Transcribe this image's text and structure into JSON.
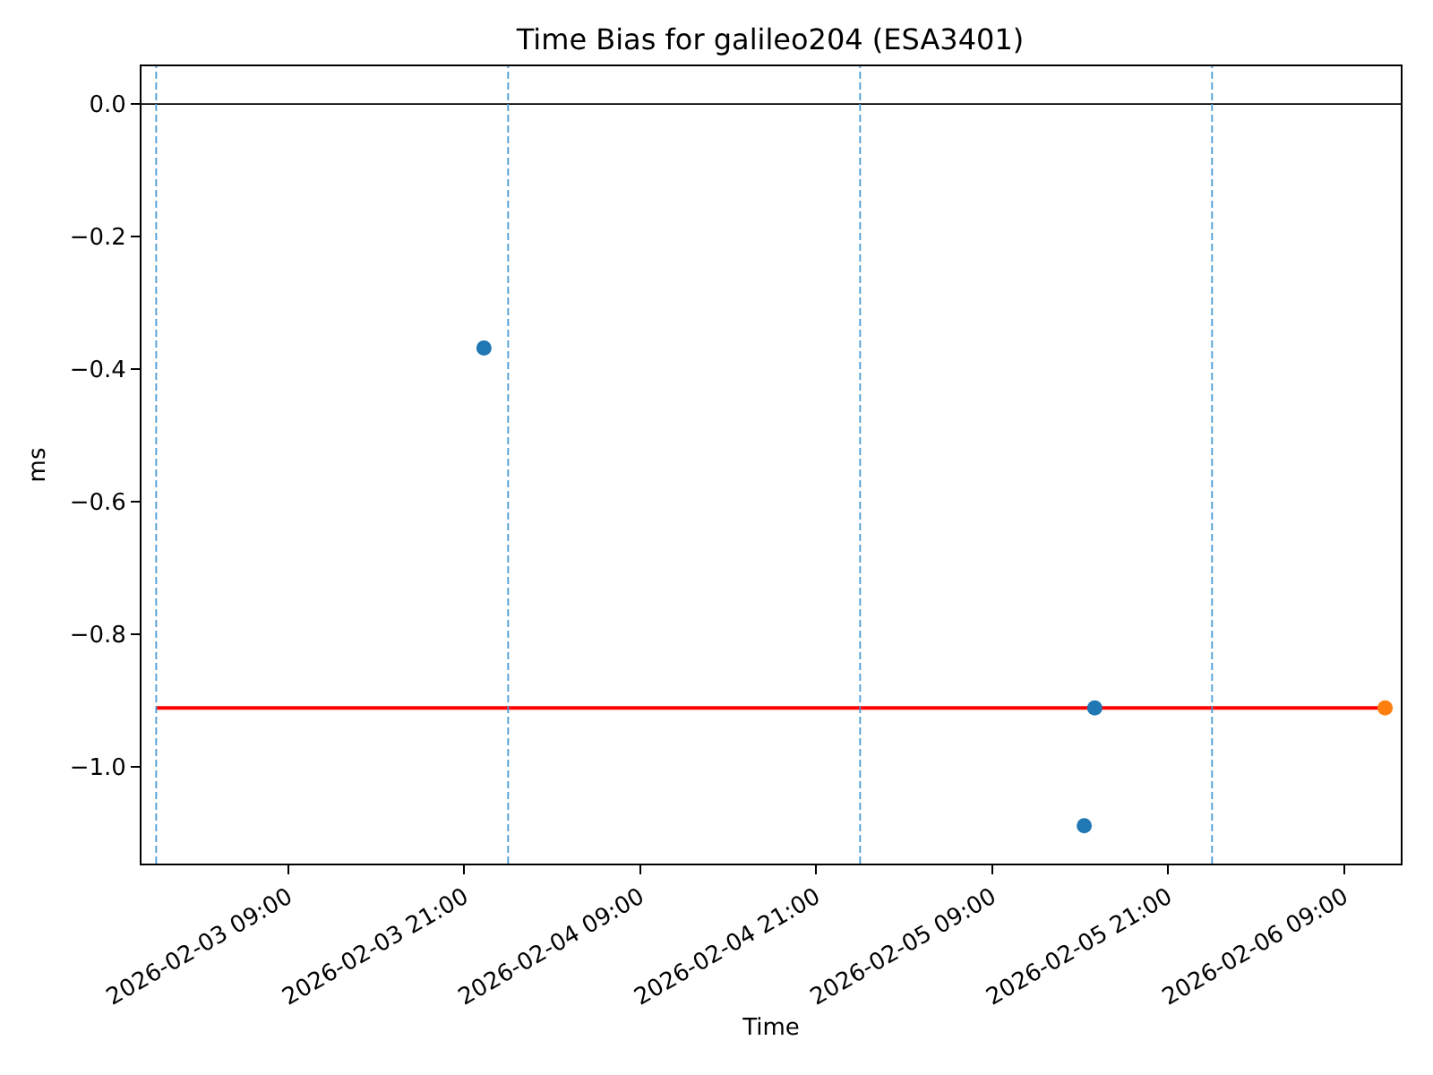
{
  "chart_data": {
    "type": "scatter",
    "title": "Time Bias for galileo204 (ESA3401)",
    "xlabel": "Time",
    "ylabel": "ms",
    "series": [
      {
        "type": "line",
        "marker": "none",
        "color": "#ff0000",
        "x": [
          "2026-02-03T00:00",
          "2026-02-06T11:48"
        ],
        "values": [
          -0.911,
          -0.911
        ]
      },
      {
        "color": "#1f77b4",
        "x": [
          "2026-02-03T22:21",
          "2026-02-05T15:17",
          "2026-02-05T16:00"
        ],
        "values": [
          -0.368,
          -1.089,
          -0.911
        ]
      },
      {
        "color": "#ff7f0e",
        "x": [
          "2026-02-06T11:48"
        ],
        "values": [
          -0.911
        ]
      }
    ],
    "xlim": [
      "2026-02-02T23:00",
      "2026-02-06T12:52"
    ],
    "xticks": [
      {
        "value": "2026-02-03T09:00",
        "label": "2026-02-03 09:00"
      },
      {
        "value": "2026-02-03T21:00",
        "label": "2026-02-03 21:00"
      },
      {
        "value": "2026-02-04T09:00",
        "label": "2026-02-04 09:00"
      },
      {
        "value": "2026-02-04T21:00",
        "label": "2026-02-04 21:00"
      },
      {
        "value": "2026-02-05T09:00",
        "label": "2026-02-05 09:00"
      },
      {
        "value": "2026-02-05T21:00",
        "label": "2026-02-05 21:00"
      },
      {
        "value": "2026-02-06T09:00",
        "label": "2026-02-06 09:00"
      }
    ],
    "ylim": [
      -1.146,
      0.057
    ],
    "yticks": [
      {
        "value": 0,
        "label": "0.0"
      },
      {
        "value": -0.2,
        "label": "−0.2"
      },
      {
        "value": -0.4,
        "label": "−0.4"
      },
      {
        "value": -0.6,
        "label": "−0.6"
      },
      {
        "value": -0.8,
        "label": "−0.8"
      },
      {
        "value": -1.0,
        "label": "−1.0"
      }
    ],
    "ref_lines": [
      {
        "axis": "y",
        "value": 0,
        "color": "#000000",
        "line_style": "solid"
      },
      {
        "axis": "x",
        "value": "2026-02-03T00:00",
        "color": "#4a9ad4",
        "line_style": "dashed"
      },
      {
        "axis": "x",
        "value": "2026-02-04T00:00",
        "color": "#4a9ad4",
        "line_style": "dashed"
      },
      {
        "axis": "x",
        "value": "2026-02-05T00:00",
        "color": "#4a9ad4",
        "line_style": "dashed"
      },
      {
        "axis": "x",
        "value": "2026-02-06T00:00",
        "color": "#4a9ad4",
        "line_style": "dashed"
      }
    ],
    "marker": "circle"
  }
}
